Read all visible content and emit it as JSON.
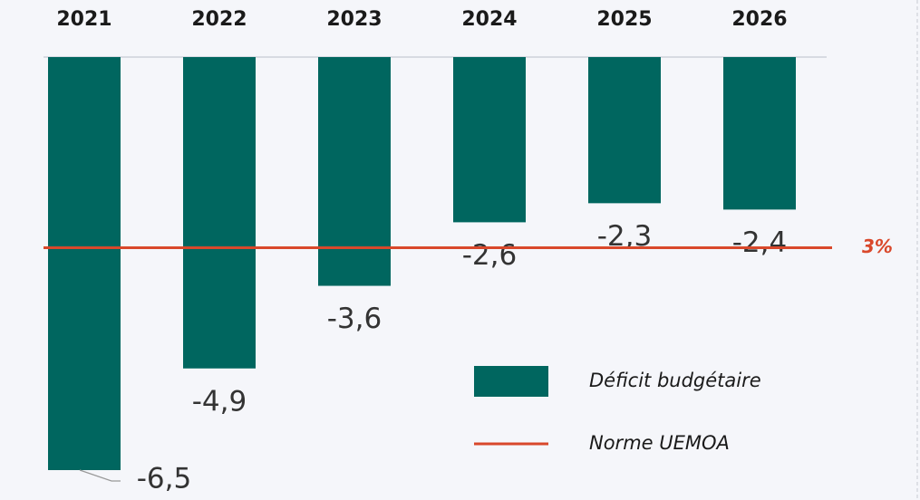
{
  "chart_data": {
    "type": "bar",
    "categories": [
      "2021",
      "2022",
      "2023",
      "2024",
      "2025",
      "2026"
    ],
    "series": [
      {
        "name": "Déficit budgétaire",
        "color": "#00665f",
        "values": [
          -6.5,
          -4.9,
          -3.6,
          -2.6,
          -2.3,
          -2.4
        ],
        "value_labels": [
          "-6,5",
          "-4,9",
          "-3,6",
          "-2,6",
          "-2,3",
          "-2,4"
        ]
      }
    ],
    "reference": {
      "name": "Norme UEMOA",
      "value": -3,
      "label": "3%",
      "color": "#d9482b"
    }
  }
}
